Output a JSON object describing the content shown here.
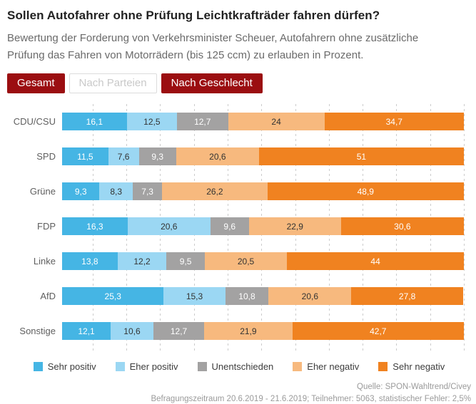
{
  "header": {
    "title": "Sollen Autofahrer ohne Prüfung Leichtkrafträder fahren dürfen?",
    "subtitle": "Bewertung der Forderung von Verkehrsminister Scheuer, Autofahrern ohne zusätzliche Prüfung das Fahren von Motorrädern (bis 125 ccm) zu erlauben in Prozent."
  },
  "toolbar": {
    "tabs": [
      {
        "label": "Gesamt",
        "state": "enabled"
      },
      {
        "label": "Nach Parteien",
        "state": "disabled-current"
      },
      {
        "label": "Nach Geschlecht",
        "state": "enabled"
      }
    ],
    "active_color": "#9b0e11",
    "disabled_text_color": "#c9c9c9"
  },
  "chart_data": {
    "type": "bar",
    "orientation": "horizontal-stacked",
    "unit": "percent",
    "xlim": [
      0,
      100
    ],
    "grid": "dashed-vertical",
    "legend_position": "bottom",
    "decimal_separator": ",",
    "categories": [
      "CDU/CSU",
      "SPD",
      "Grüne",
      "FDP",
      "Linke",
      "AfD",
      "Sonstige"
    ],
    "series": [
      {
        "name": "Sehr positiv",
        "color": "#45b5e4",
        "label_color": "#ffffff",
        "values": [
          16.1,
          11.5,
          9.3,
          16.3,
          13.8,
          25.3,
          12.1
        ]
      },
      {
        "name": "Eher positiv",
        "color": "#9bd7f3",
        "label_color": "#333333",
        "values": [
          12.5,
          7.6,
          8.3,
          20.6,
          12.2,
          15.3,
          10.6
        ]
      },
      {
        "name": "Unentschieden",
        "color": "#a3a2a2",
        "label_color": "#ffffff",
        "values": [
          12.7,
          9.3,
          7.3,
          9.6,
          9.5,
          10.8,
          12.7
        ]
      },
      {
        "name": "Eher negativ",
        "color": "#f7b97e",
        "label_color": "#333333",
        "values": [
          24,
          20.6,
          26.2,
          22.9,
          20.5,
          20.6,
          21.9
        ]
      },
      {
        "name": "Sehr negativ",
        "color": "#f08220",
        "label_color": "#ffffff",
        "values": [
          34.7,
          51,
          48.9,
          30.6,
          44,
          27.8,
          42.7
        ]
      }
    ]
  },
  "footer": {
    "source": "Quelle: SPON-Wahltrend/Civey",
    "survey_info": "Befragungszeitraum 20.6.2019 - 21.6.2019; Teilnehmer: 5063, statistischer Fehler: 2,5%"
  }
}
